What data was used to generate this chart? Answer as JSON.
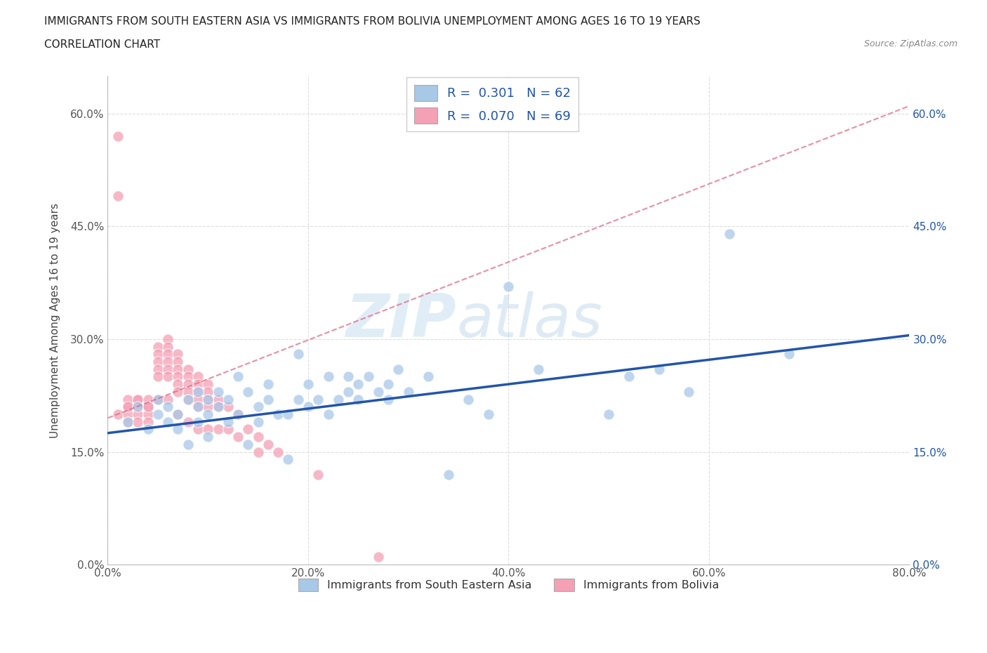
{
  "title_line1": "IMMIGRANTS FROM SOUTH EASTERN ASIA VS IMMIGRANTS FROM BOLIVIA UNEMPLOYMENT AMONG AGES 16 TO 19 YEARS",
  "title_line2": "CORRELATION CHART",
  "source_text": "Source: ZipAtlas.com",
  "ylabel": "Unemployment Among Ages 16 to 19 years",
  "xlim": [
    0.0,
    0.8
  ],
  "ylim": [
    0.0,
    0.65
  ],
  "xticks": [
    0.0,
    0.2,
    0.4,
    0.6,
    0.8
  ],
  "xtick_labels": [
    "0.0%",
    "20.0%",
    "40.0%",
    "60.0%",
    "80.0%"
  ],
  "yticks": [
    0.0,
    0.15,
    0.3,
    0.45,
    0.6
  ],
  "ytick_labels": [
    "0.0%",
    "15.0%",
    "30.0%",
    "45.0%",
    "60.0%"
  ],
  "blue_color": "#a8c8e8",
  "pink_color": "#f4a0b5",
  "blue_line_color": "#2255aa",
  "pink_line_color": "#e06080",
  "R_blue": 0.301,
  "N_blue": 62,
  "R_pink": 0.07,
  "N_pink": 69,
  "watermark_zip": "ZIP",
  "watermark_atlas": "atlas",
  "legend_label_blue": "Immigrants from South Eastern Asia",
  "legend_label_pink": "Immigrants from Bolivia",
  "blue_scatter_x": [
    0.02,
    0.03,
    0.04,
    0.05,
    0.05,
    0.06,
    0.06,
    0.07,
    0.07,
    0.08,
    0.08,
    0.09,
    0.09,
    0.09,
    0.1,
    0.1,
    0.1,
    0.11,
    0.11,
    0.12,
    0.12,
    0.13,
    0.13,
    0.14,
    0.14,
    0.15,
    0.15,
    0.16,
    0.16,
    0.17,
    0.18,
    0.18,
    0.19,
    0.19,
    0.2,
    0.2,
    0.21,
    0.22,
    0.22,
    0.23,
    0.24,
    0.24,
    0.25,
    0.25,
    0.26,
    0.27,
    0.28,
    0.28,
    0.29,
    0.3,
    0.32,
    0.34,
    0.36,
    0.38,
    0.4,
    0.43,
    0.5,
    0.52,
    0.55,
    0.58,
    0.62,
    0.68
  ],
  "blue_scatter_y": [
    0.19,
    0.21,
    0.18,
    0.2,
    0.22,
    0.19,
    0.21,
    0.18,
    0.2,
    0.22,
    0.16,
    0.21,
    0.19,
    0.23,
    0.2,
    0.22,
    0.17,
    0.21,
    0.23,
    0.19,
    0.22,
    0.2,
    0.25,
    0.16,
    0.23,
    0.21,
    0.19,
    0.22,
    0.24,
    0.2,
    0.14,
    0.2,
    0.28,
    0.22,
    0.21,
    0.24,
    0.22,
    0.2,
    0.25,
    0.22,
    0.23,
    0.25,
    0.22,
    0.24,
    0.25,
    0.23,
    0.24,
    0.22,
    0.26,
    0.23,
    0.25,
    0.12,
    0.22,
    0.2,
    0.37,
    0.26,
    0.2,
    0.25,
    0.26,
    0.23,
    0.44,
    0.28
  ],
  "pink_scatter_x": [
    0.01,
    0.01,
    0.01,
    0.02,
    0.02,
    0.02,
    0.02,
    0.02,
    0.03,
    0.03,
    0.03,
    0.03,
    0.03,
    0.04,
    0.04,
    0.04,
    0.04,
    0.04,
    0.05,
    0.05,
    0.05,
    0.05,
    0.05,
    0.05,
    0.06,
    0.06,
    0.06,
    0.06,
    0.06,
    0.06,
    0.06,
    0.07,
    0.07,
    0.07,
    0.07,
    0.07,
    0.07,
    0.07,
    0.08,
    0.08,
    0.08,
    0.08,
    0.08,
    0.08,
    0.09,
    0.09,
    0.09,
    0.09,
    0.09,
    0.09,
    0.1,
    0.1,
    0.1,
    0.1,
    0.1,
    0.11,
    0.11,
    0.11,
    0.12,
    0.12,
    0.13,
    0.13,
    0.14,
    0.15,
    0.15,
    0.16,
    0.17,
    0.21,
    0.27
  ],
  "pink_scatter_y": [
    0.57,
    0.49,
    0.2,
    0.21,
    0.2,
    0.22,
    0.21,
    0.19,
    0.22,
    0.21,
    0.2,
    0.22,
    0.19,
    0.21,
    0.2,
    0.22,
    0.21,
    0.19,
    0.29,
    0.28,
    0.27,
    0.26,
    0.25,
    0.22,
    0.3,
    0.29,
    0.28,
    0.27,
    0.26,
    0.25,
    0.22,
    0.28,
    0.27,
    0.26,
    0.25,
    0.24,
    0.23,
    0.2,
    0.26,
    0.25,
    0.24,
    0.23,
    0.22,
    0.19,
    0.25,
    0.24,
    0.23,
    0.22,
    0.21,
    0.18,
    0.24,
    0.23,
    0.22,
    0.21,
    0.18,
    0.22,
    0.21,
    0.18,
    0.21,
    0.18,
    0.2,
    0.17,
    0.18,
    0.17,
    0.15,
    0.16,
    0.15,
    0.12,
    0.01
  ],
  "blue_line_x": [
    0.0,
    0.8
  ],
  "blue_line_y": [
    0.175,
    0.305
  ],
  "pink_line_x": [
    0.0,
    0.8
  ],
  "pink_line_y": [
    0.195,
    0.61
  ]
}
